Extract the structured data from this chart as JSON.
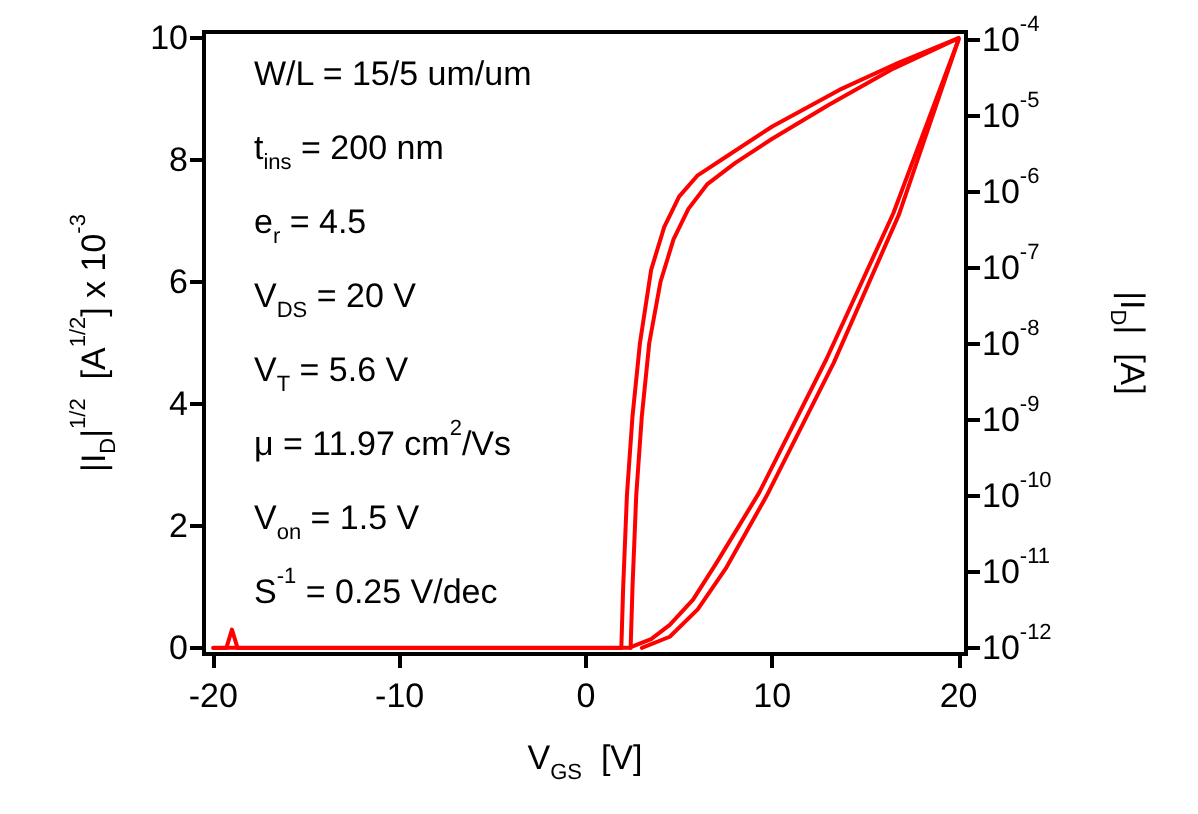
{
  "chart_data": {
    "type": "line",
    "xlabel": "V$_{GS}$  [V]",
    "ylabel": "|I$_{D}$|$^{1/2}$  [A$^{1/2}$] x 10$^{-3}$",
    "y2label": "|I$_{D}$|  [A]",
    "annotations": [
      "W/L = 15/5 um/um",
      "t$_{ins}$ = 200 nm",
      "e$_{r}$ = 4.5",
      "V$_{DS}$ = 20 V",
      "V$_{T}$ = 5.6 V",
      "μ = 11.97 cm$^{2}$/Vs",
      "V$_{on}$ = 1.5 V",
      "S$^{-1}$ = 0.25 V/dec"
    ],
    "xlim": [
      -20.5,
      20.4
    ],
    "xticks": [
      -20,
      -10,
      0,
      10,
      20
    ],
    "ylim": [
      -0.1,
      10.1
    ],
    "yticks": [
      0,
      2,
      4,
      6,
      8,
      10
    ],
    "y2lim": [
      8.3e-13,
      0.000126
    ],
    "y2ticks": [
      {
        "value": 1e-12,
        "label": "10$^{-12}$"
      },
      {
        "value": 1e-11,
        "label": "10$^{-11}$"
      },
      {
        "value": 1e-10,
        "label": "10$^{-10}$"
      },
      {
        "value": 1e-09,
        "label": "10$^{-9}$"
      },
      {
        "value": 1e-08,
        "label": "10$^{-8}$"
      },
      {
        "value": 1e-07,
        "label": "10$^{-7}$"
      },
      {
        "value": 1e-06,
        "label": "10$^{-6}$"
      },
      {
        "value": 1e-05,
        "label": "10$^{-5}$"
      },
      {
        "value": 0.0001,
        "label": "10$^{-4}$"
      }
    ],
    "log": "y2",
    "grid": false,
    "marker": "none",
    "line_style": "solid",
    "series": [
      {
        "color": "#ff0000",
        "x": [
          -20,
          -19.3,
          -19,
          -18.7,
          1.9,
          2.0,
          2.2,
          2.5,
          2.9,
          3.5,
          4.2,
          5,
          6,
          7.5,
          10,
          13.6,
          16.8,
          20
        ],
        "values": [
          0,
          0,
          0.3,
          0,
          0,
          1,
          2.5,
          3.8,
          5.0,
          6.2,
          6.9,
          7.4,
          7.75,
          8.05,
          8.55,
          9.15,
          9.6,
          10
        ]
      },
      {
        "color": "#ff0000",
        "x": [
          2.4,
          2.5,
          2.7,
          3.0,
          3.4,
          4.0,
          4.7,
          5.5,
          6.5,
          8,
          10,
          13,
          16.5,
          20
        ],
        "values": [
          0,
          1,
          2.5,
          3.8,
          5.0,
          6.0,
          6.7,
          7.2,
          7.6,
          7.95,
          8.35,
          8.9,
          9.5,
          10
        ]
      },
      {
        "color": "#ff0000",
        "axis": "y2",
        "x": [
          -20,
          2.3,
          3.5,
          4.5,
          5.75,
          7,
          9.3,
          12.9,
          16.5,
          20
        ],
        "values": [
          1e-12,
          1e-12,
          1.3e-12,
          2e-12,
          4.3e-12,
          1.3e-11,
          1.1e-10,
          6.2e-09,
          5.2e-07,
          0.0001
        ]
      },
      {
        "color": "#ff0000",
        "axis": "y2",
        "x": [
          3.0,
          4.5,
          6,
          7.5,
          9.7,
          13.3,
          16.8,
          20
        ],
        "values": [
          1e-12,
          1.4e-12,
          3.2e-12,
          1.1e-11,
          1e-10,
          5.6e-09,
          5e-07,
          0.0001
        ]
      }
    ]
  }
}
